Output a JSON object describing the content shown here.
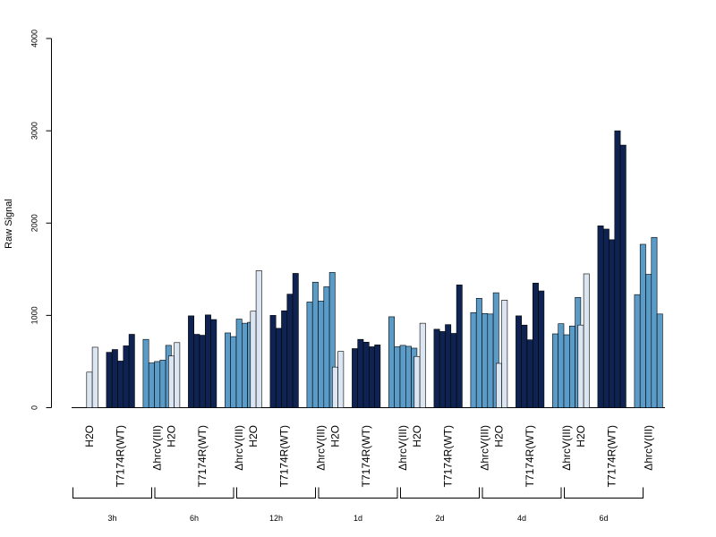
{
  "chart_data": {
    "type": "bar",
    "ylabel": "Raw Signal",
    "ylim": [
      0,
      4000
    ],
    "yticks": [
      0,
      1000,
      2000,
      3000,
      4000
    ],
    "grid": false,
    "legend": "none",
    "colors": {
      "H2O": "#dce6f2",
      "T7174R(WT)": "#0f2352",
      "ΔhrcV(III)": "#5b9bc8"
    },
    "bar_label_order": [
      "H2O",
      "T7174R(WT)",
      "ΔhrcV(III)"
    ],
    "groups": [
      {
        "label": "3h",
        "bars": [
          {
            "category": "H2O",
            "values": [
              0,
              385,
              655
            ]
          },
          {
            "category": "T7174R(WT)",
            "values": [
              600,
              630,
              505,
              670,
              795
            ]
          },
          {
            "category": "ΔhrcV(III)",
            "values": [
              740,
              485,
              500,
              515,
              675
            ]
          }
        ]
      },
      {
        "label": "6h",
        "bars": [
          {
            "category": "H2O",
            "values": [
              0,
              560,
              705
            ]
          },
          {
            "category": "T7174R(WT)",
            "values": [
              995,
              795,
              785,
              1005,
              955
            ]
          },
          {
            "category": "ΔhrcV(III)",
            "values": [
              810,
              770,
              960,
              915,
              925
            ]
          }
        ]
      },
      {
        "label": "12h",
        "bars": [
          {
            "category": "H2O",
            "values": [
              0,
              1045,
              1485
            ]
          },
          {
            "category": "T7174R(WT)",
            "values": [
              1000,
              860,
              1050,
              1230,
              1455
            ]
          },
          {
            "category": "ΔhrcV(III)",
            "values": [
              1145,
              1360,
              1155,
              1310,
              1465
            ]
          }
        ]
      },
      {
        "label": "1d",
        "bars": [
          {
            "category": "H2O",
            "values": [
              0,
              440,
              610
            ]
          },
          {
            "category": "T7174R(WT)",
            "values": [
              640,
              740,
              710,
              660,
              680
            ]
          },
          {
            "category": "ΔhrcV(III)",
            "values": [
              985,
              660,
              675,
              665,
              645
            ]
          }
        ]
      },
      {
        "label": "2d",
        "bars": [
          {
            "category": "H2O",
            "values": [
              0,
              555,
              915
            ]
          },
          {
            "category": "T7174R(WT)",
            "values": [
              850,
              825,
              900,
              805,
              1330
            ]
          },
          {
            "category": "ΔhrcV(III)",
            "values": [
              1030,
              1185,
              1020,
              1015,
              1245
            ]
          }
        ]
      },
      {
        "label": "4d",
        "bars": [
          {
            "category": "H2O",
            "values": [
              0,
              480,
              1165
            ]
          },
          {
            "category": "T7174R(WT)",
            "values": [
              995,
              895,
              735,
              1350,
              1265
            ]
          },
          {
            "category": "ΔhrcV(III)",
            "values": [
              800,
              910,
              790,
              885,
              1195
            ]
          }
        ]
      },
      {
        "label": "6d",
        "bars": [
          {
            "category": "H2O",
            "values": [
              0,
              895,
              1450
            ]
          },
          {
            "category": "T7174R(WT)",
            "values": [
              1970,
              1935,
              1820,
              3000,
              2845
            ]
          },
          {
            "category": "ΔhrcV(III)",
            "values": [
              1225,
              1770,
              1445,
              1845,
              1015
            ]
          }
        ]
      }
    ]
  }
}
